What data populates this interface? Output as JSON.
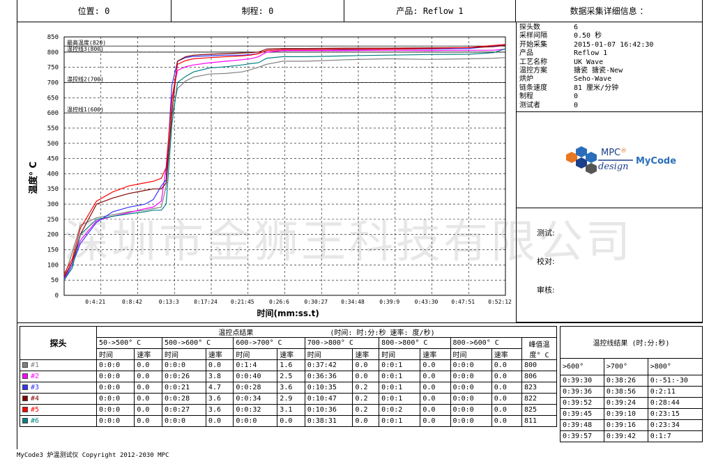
{
  "header": {
    "position": "位置: 0",
    "process": "制程: 0",
    "product": "产品: Reflow 1",
    "info_title": "数据采集详细信息 ："
  },
  "info": [
    {
      "k": "探头数",
      "v": "6"
    },
    {
      "k": "采样间隔",
      "v": "0.50 秒"
    },
    {
      "k": "开始采集",
      "v": "2015-01-07 16:42:30"
    },
    {
      "k": "产品",
      "v": "Reflow 1"
    },
    {
      "k": "工艺名称",
      "v": "UK Wave"
    },
    {
      "k": "温控方案",
      "v": "搪瓷 搪瓷-New"
    },
    {
      "k": "烘炉",
      "v": "Seho-Wave"
    },
    {
      "k": "链条速度",
      "v": "81 厘米/分钟"
    },
    {
      "k": "制程",
      "v": "0"
    },
    {
      "k": "测试者",
      "v": "0"
    }
  ],
  "logo": {
    "brand": "MPC",
    "reg": "®",
    "design": "design",
    "name": "MyCode"
  },
  "signoff": {
    "tester": "测试:",
    "checker": "校对:",
    "reviewer": "审核:"
  },
  "watermark": "深圳市金狮王科技有限公司",
  "chart_data": {
    "type": "line",
    "ylabel": "温度° C",
    "xlabel": "时间(mm:ss.t)",
    "ylim": [
      0,
      850
    ],
    "yticks": [
      "850",
      "800",
      "750",
      "700",
      "650",
      "600",
      "550",
      "500",
      "450",
      "400",
      "350",
      "300",
      "250",
      "200",
      "150",
      "100",
      "50",
      "0"
    ],
    "xticks": [
      "0:4:21",
      "0:8:42",
      "0:13:3",
      "0:17:24",
      "0:21:45",
      "0:26:6",
      "0:30:27",
      "0:34:48",
      "0:39:9",
      "0:43:30",
      "0:47:51",
      "0:52:12"
    ],
    "xmax_minutes": 54.5,
    "hlines": [
      {
        "label": "最高温度(820)",
        "value": 820
      },
      {
        "label": "温控线3(800)",
        "value": 800
      },
      {
        "label": "温控线2(700)",
        "value": 700
      },
      {
        "label": "温控线1(600)",
        "value": 600
      }
    ],
    "series": [
      {
        "name": "#1",
        "color": "#808080",
        "x": [
          0,
          1,
          2,
          4,
          6,
          8,
          10,
          11,
          12,
          12.6,
          13.3,
          14,
          15,
          16,
          18,
          20,
          22,
          23,
          24,
          25,
          27,
          30,
          35,
          40,
          45,
          50,
          53,
          54.5
        ],
        "y": [
          60,
          140,
          230,
          255,
          265,
          275,
          280,
          285,
          290,
          360,
          590,
          680,
          705,
          718,
          728,
          730,
          735,
          742,
          750,
          760,
          770,
          770,
          775,
          778,
          776,
          778,
          780,
          782
        ]
      },
      {
        "name": "#2",
        "color": "#ff00ff",
        "x": [
          0,
          1,
          2,
          4,
          6,
          8,
          10,
          11,
          12,
          12.6,
          13.3,
          14,
          15,
          16,
          18,
          20,
          22,
          23,
          24,
          25,
          27,
          30,
          35,
          40,
          45,
          50,
          53,
          54.5
        ],
        "y": [
          55,
          110,
          180,
          245,
          260,
          272,
          285,
          290,
          310,
          420,
          650,
          740,
          752,
          758,
          765,
          770,
          775,
          778,
          785,
          800,
          805,
          805,
          805,
          806,
          805,
          806,
          806,
          810
        ]
      },
      {
        "name": "#3",
        "color": "#3333ff",
        "x": [
          0,
          1,
          2,
          4,
          6,
          8,
          10,
          11,
          12,
          12.6,
          13.3,
          14,
          15,
          16,
          18,
          20,
          22,
          23,
          24,
          25,
          27,
          30,
          35,
          40,
          45,
          50,
          53,
          54.5
        ],
        "y": [
          50,
          100,
          170,
          240,
          275,
          290,
          300,
          315,
          360,
          380,
          690,
          770,
          782,
          786,
          788,
          790,
          790,
          792,
          795,
          805,
          808,
          808,
          808,
          810,
          810,
          812,
          820,
          823
        ]
      },
      {
        "name": "#4",
        "color": "#800000",
        "x": [
          0,
          1,
          2,
          4,
          6,
          8,
          10,
          11,
          12,
          12.6,
          13.3,
          14,
          15,
          16,
          18,
          20,
          22,
          23,
          24,
          25,
          27,
          30,
          35,
          40,
          45,
          50,
          53,
          54.5
        ],
        "y": [
          60,
          110,
          200,
          300,
          320,
          335,
          345,
          350,
          350,
          370,
          600,
          770,
          785,
          790,
          793,
          795,
          797,
          798,
          800,
          810,
          812,
          812,
          813,
          813,
          814,
          815,
          818,
          822
        ]
      },
      {
        "name": "#5",
        "color": "#ff0000",
        "x": [
          0,
          1,
          2,
          4,
          6,
          8,
          10,
          11,
          12,
          12.6,
          13.3,
          14,
          15,
          16,
          18,
          20,
          22,
          23,
          24,
          25,
          27,
          30,
          35,
          40,
          45,
          50,
          53,
          54.5
        ],
        "y": [
          70,
          120,
          220,
          310,
          340,
          360,
          370,
          375,
          385,
          420,
          640,
          760,
          772,
          778,
          782,
          785,
          788,
          790,
          795,
          805,
          808,
          808,
          810,
          810,
          812,
          815,
          822,
          825
        ]
      },
      {
        "name": "#6",
        "color": "#008080",
        "x": [
          0,
          1,
          2,
          4,
          6,
          8,
          10,
          11,
          12,
          12.6,
          13.3,
          14,
          15,
          16,
          18,
          20,
          22,
          23,
          24,
          25,
          27,
          30,
          35,
          40,
          45,
          50,
          53,
          54.5
        ],
        "y": [
          50,
          90,
          200,
          250,
          260,
          268,
          275,
          280,
          280,
          300,
          560,
          700,
          720,
          735,
          748,
          752,
          758,
          762,
          765,
          780,
          785,
          785,
          788,
          790,
          792,
          793,
          798,
          811
        ]
      }
    ]
  },
  "results": {
    "probe_header": "探头",
    "points_header": "温控点结果",
    "units_note": "(时间:  时:分:秒  速率: 度/秒)",
    "ranges": [
      "50->500° C",
      "500->600° C",
      "600->700° C",
      "700->800° C",
      "800->800° C",
      "800->600° C"
    ],
    "time_label": "时间",
    "rate_label": "速率",
    "peak_label": "峰值温度° C",
    "lines_header": "温控线结果 (时:分:秒)",
    "line_cols": [
      ">600°",
      ">700°",
      ">800°"
    ],
    "rows": [
      {
        "probe": "#1",
        "color": "#808080",
        "vals": [
          "0:0:0",
          "0.0",
          "0:0:0",
          "0.0",
          "0:1:4",
          "1.6",
          "0:37:42",
          "0.0",
          "0:0:1",
          "0.0",
          "0:0:0",
          "0.0"
        ],
        "peak": "800",
        "lines": [
          "0:39:30",
          "0:38:26",
          "0:-51:-30"
        ]
      },
      {
        "probe": "#2",
        "color": "#ff00ff",
        "vals": [
          "0:0:0",
          "0.0",
          "0:0:26",
          "3.8",
          "0:0:40",
          "2.5",
          "0:36:36",
          "0.0",
          "0:0:1",
          "0.0",
          "0:0:0",
          "0.0"
        ],
        "peak": "806",
        "lines": [
          "0:39:36",
          "0:38:56",
          "0:2:11"
        ]
      },
      {
        "probe": "#3",
        "color": "#3333ff",
        "vals": [
          "0:0:0",
          "0.0",
          "0:0:21",
          "4.7",
          "0:0:28",
          "3.6",
          "0:10:35",
          "0.2",
          "0:0:1",
          "0.0",
          "0:0:0",
          "0.0"
        ],
        "peak": "823",
        "lines": [
          "0:39:52",
          "0:39:24",
          "0:28:44"
        ]
      },
      {
        "probe": "#4",
        "color": "#800000",
        "vals": [
          "0:0:0",
          "0.0",
          "0:0:28",
          "3.6",
          "0:0:34",
          "2.9",
          "0:10:47",
          "0.2",
          "0:0:1",
          "0.0",
          "0:0:0",
          "0.0"
        ],
        "peak": "822",
        "lines": [
          "0:39:45",
          "0:39:10",
          "0:23:15"
        ]
      },
      {
        "probe": "#5",
        "color": "#ff0000",
        "vals": [
          "0:0:0",
          "0.0",
          "0:0:27",
          "3.6",
          "0:0:32",
          "3.1",
          "0:10:36",
          "0.2",
          "0:0:2",
          "0.0",
          "0:0:0",
          "0.0"
        ],
        "peak": "825",
        "lines": [
          "0:39:48",
          "0:39:16",
          "0:23:34"
        ]
      },
      {
        "probe": "#6",
        "color": "#008080",
        "vals": [
          "0:0:0",
          "0.0",
          "0:0:0",
          "0.0",
          "0:0:0",
          "0.0",
          "0:38:31",
          "0.0",
          "0:0:1",
          "0.0",
          "0:0:0",
          "0.0"
        ],
        "peak": "811",
        "lines": [
          "0:39:57",
          "0:39:42",
          "0:1:7"
        ]
      }
    ]
  },
  "footer": "MyCode3 炉温测试仪 Copyright 2012-2030 MPC"
}
